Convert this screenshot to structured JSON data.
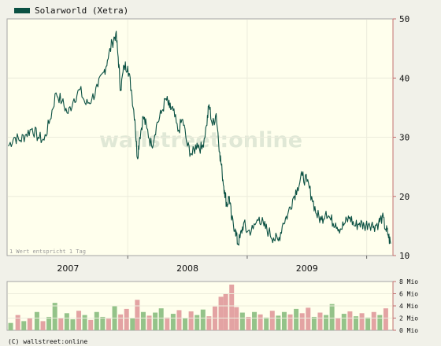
{
  "chart_data": [
    {
      "type": "line",
      "legend": {
        "label": "Solarworld (Xetra)",
        "color": "#0b5143",
        "placement": "top-left"
      },
      "x_labels": [
        "2007",
        "2008",
        "2009"
      ],
      "y_ticks": [
        10,
        20,
        30,
        40,
        50
      ],
      "ylim": [
        10,
        50
      ],
      "watermark": "wallstreet:online",
      "note": "1 Wert entspricht 1 Tag",
      "line_color": "#0b5143",
      "series": [
        {
          "values": [
            [
              2006.5,
              28.5
            ],
            [
              2006.55,
              30.0
            ],
            [
              2006.6,
              29.5
            ],
            [
              2006.65,
              30.5
            ],
            [
              2006.7,
              31.5
            ],
            [
              2006.75,
              30.0
            ],
            [
              2006.8,
              29.5
            ],
            [
              2006.85,
              33.0
            ],
            [
              2006.9,
              37.5
            ],
            [
              2006.95,
              36.0
            ],
            [
              2007.0,
              34.0
            ],
            [
              2007.05,
              36.5
            ],
            [
              2007.1,
              38.0
            ],
            [
              2007.15,
              35.5
            ],
            [
              2007.2,
              36.5
            ],
            [
              2007.25,
              38.5
            ],
            [
              2007.3,
              41.0
            ],
            [
              2007.33,
              43.0
            ],
            [
              2007.37,
              46.0
            ],
            [
              2007.4,
              47.5
            ],
            [
              2007.42,
              43.5
            ],
            [
              2007.44,
              38.0
            ],
            [
              2007.47,
              42.0
            ],
            [
              2007.5,
              42.0
            ],
            [
              2007.53,
              38.0
            ],
            [
              2007.56,
              33.0
            ],
            [
              2007.58,
              26.5
            ],
            [
              2007.6,
              30.0
            ],
            [
              2007.63,
              33.5
            ],
            [
              2007.66,
              31.5
            ],
            [
              2007.7,
              28.5
            ],
            [
              2007.74,
              32.0
            ],
            [
              2007.78,
              34.0
            ],
            [
              2007.82,
              36.5
            ],
            [
              2007.85,
              35.0
            ],
            [
              2007.88,
              34.5
            ],
            [
              2007.92,
              31.0
            ],
            [
              2007.96,
              33.0
            ],
            [
              2008.0,
              28.5
            ],
            [
              2008.04,
              27.0
            ],
            [
              2008.08,
              29.0
            ],
            [
              2008.12,
              28.0
            ],
            [
              2008.16,
              32.0
            ],
            [
              2008.18,
              35.5
            ],
            [
              2008.21,
              32.0
            ],
            [
              2008.24,
              34.0
            ],
            [
              2008.27,
              27.5
            ],
            [
              2008.29,
              24.0
            ],
            [
              2008.31,
              21.0
            ],
            [
              2008.33,
              18.5
            ],
            [
              2008.35,
              20.0
            ],
            [
              2008.37,
              16.0
            ],
            [
              2008.4,
              14.5
            ],
            [
              2008.42,
              12.0
            ],
            [
              2008.44,
              13.0
            ],
            [
              2008.47,
              15.5
            ],
            [
              2008.5,
              14.0
            ],
            [
              2008.55,
              14.5
            ],
            [
              2008.6,
              16.5
            ],
            [
              2008.64,
              15.0
            ],
            [
              2008.68,
              14.0
            ],
            [
              2008.72,
              13.0
            ],
            [
              2008.76,
              12.5
            ],
            [
              2008.8,
              15.5
            ],
            [
              2008.84,
              17.0
            ],
            [
              2008.88,
              19.5
            ],
            [
              2008.92,
              21.5
            ],
            [
              2008.96,
              23.5
            ],
            [
              2009.0,
              22.5
            ],
            [
              2009.04,
              20.0
            ],
            [
              2009.08,
              17.0
            ],
            [
              2009.12,
              16.0
            ],
            [
              2009.16,
              17.5
            ],
            [
              2009.2,
              16.0
            ],
            [
              2009.24,
              15.5
            ],
            [
              2009.28,
              14.5
            ],
            [
              2009.32,
              15.5
            ],
            [
              2009.36,
              16.5
            ],
            [
              2009.4,
              15.0
            ],
            [
              2009.44,
              15.5
            ],
            [
              2009.48,
              15.0
            ],
            [
              2009.52,
              15.5
            ],
            [
              2009.56,
              15.0
            ],
            [
              2009.6,
              15.5
            ],
            [
              2009.63,
              16.5
            ],
            [
              2009.66,
              14.5
            ],
            [
              2009.68,
              13.5
            ],
            [
              2009.7,
              12.0
            ]
          ]
        }
      ]
    },
    {
      "type": "bar",
      "y_ticks": [
        0,
        2,
        4,
        6,
        8
      ],
      "unit": "Mio",
      "ylim": [
        0,
        8
      ],
      "up_color": "#94c389",
      "down_color": "#e3a3a3",
      "bars": [
        [
          2006.52,
          1.2,
          "up"
        ],
        [
          2006.58,
          2.5,
          "down"
        ],
        [
          2006.63,
          1.5,
          "up"
        ],
        [
          2006.68,
          2.0,
          "down"
        ],
        [
          2006.74,
          3.0,
          "up"
        ],
        [
          2006.79,
          1.5,
          "down"
        ],
        [
          2006.84,
          2.2,
          "up"
        ],
        [
          2006.89,
          4.5,
          "up"
        ],
        [
          2006.94,
          2.0,
          "down"
        ],
        [
          2006.99,
          2.8,
          "up"
        ],
        [
          2007.04,
          1.8,
          "up"
        ],
        [
          2007.09,
          3.2,
          "down"
        ],
        [
          2007.14,
          2.5,
          "up"
        ],
        [
          2007.19,
          1.7,
          "down"
        ],
        [
          2007.24,
          3.0,
          "up"
        ],
        [
          2007.29,
          2.2,
          "up"
        ],
        [
          2007.34,
          1.9,
          "down"
        ],
        [
          2007.39,
          4.0,
          "up"
        ],
        [
          2007.44,
          2.6,
          "down"
        ],
        [
          2007.49,
          3.5,
          "down"
        ],
        [
          2007.54,
          2.0,
          "up"
        ],
        [
          2007.58,
          5.0,
          "down"
        ],
        [
          2007.63,
          3.0,
          "up"
        ],
        [
          2007.68,
          2.4,
          "down"
        ],
        [
          2007.73,
          2.9,
          "up"
        ],
        [
          2007.78,
          3.6,
          "up"
        ],
        [
          2007.83,
          2.1,
          "down"
        ],
        [
          2007.88,
          2.7,
          "up"
        ],
        [
          2007.93,
          3.3,
          "down"
        ],
        [
          2007.98,
          2.0,
          "up"
        ],
        [
          2008.03,
          3.1,
          "down"
        ],
        [
          2008.08,
          2.5,
          "up"
        ],
        [
          2008.13,
          3.4,
          "up"
        ],
        [
          2008.18,
          2.3,
          "down"
        ],
        [
          2008.23,
          3.9,
          "down"
        ],
        [
          2008.28,
          5.5,
          "down"
        ],
        [
          2008.32,
          6.0,
          "down"
        ],
        [
          2008.37,
          7.5,
          "down"
        ],
        [
          2008.41,
          3.8,
          "down"
        ],
        [
          2008.46,
          2.9,
          "up"
        ],
        [
          2008.51,
          2.2,
          "down"
        ],
        [
          2008.56,
          3.0,
          "up"
        ],
        [
          2008.61,
          2.6,
          "down"
        ],
        [
          2008.66,
          2.1,
          "up"
        ],
        [
          2008.71,
          3.2,
          "down"
        ],
        [
          2008.76,
          2.4,
          "up"
        ],
        [
          2008.81,
          3.0,
          "up"
        ],
        [
          2008.86,
          2.6,
          "down"
        ],
        [
          2008.91,
          3.5,
          "up"
        ],
        [
          2008.96,
          2.8,
          "down"
        ],
        [
          2009.01,
          3.7,
          "down"
        ],
        [
          2009.06,
          2.2,
          "up"
        ],
        [
          2009.11,
          2.9,
          "down"
        ],
        [
          2009.16,
          2.5,
          "up"
        ],
        [
          2009.21,
          4.3,
          "up"
        ],
        [
          2009.26,
          2.0,
          "down"
        ],
        [
          2009.31,
          2.7,
          "up"
        ],
        [
          2009.36,
          3.1,
          "down"
        ],
        [
          2009.41,
          2.3,
          "up"
        ],
        [
          2009.46,
          2.8,
          "down"
        ],
        [
          2009.51,
          2.1,
          "up"
        ],
        [
          2009.56,
          3.0,
          "down"
        ],
        [
          2009.61,
          2.5,
          "up"
        ],
        [
          2009.66,
          3.6,
          "down"
        ]
      ]
    }
  ],
  "footer": {
    "copyright": "(C) wallstreet:online"
  }
}
